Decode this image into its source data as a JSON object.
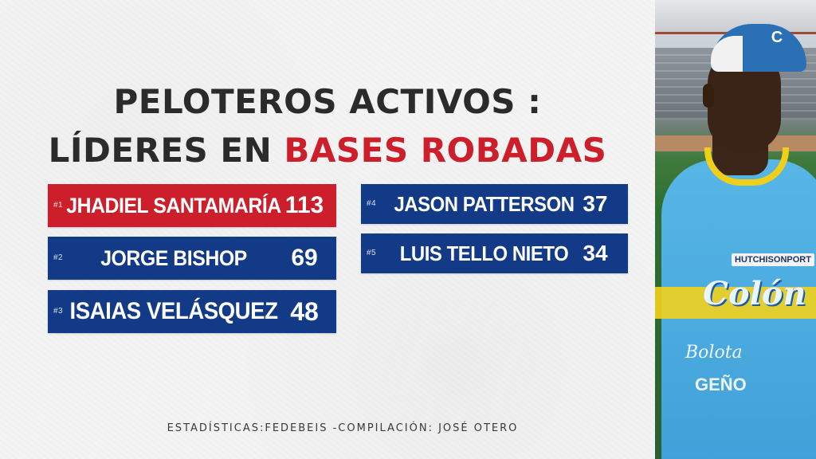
{
  "title": {
    "line1": "PELOTEROS ACTIVOS :",
    "line2_prefix": "LÍDERES EN",
    "line2_highlight": "BASES ROBADAS"
  },
  "leaders": [
    {
      "rank": "#1",
      "name": "JHADIEL SANTAMARÍA",
      "value": "113"
    },
    {
      "rank": "#2",
      "name": "JORGE BISHOP",
      "value": "69"
    },
    {
      "rank": "#3",
      "name": "ISAIAS VELÁSQUEZ",
      "value": "48"
    },
    {
      "rank": "#4",
      "name": "JASON PATTERSON",
      "value": "37"
    },
    {
      "rank": "#5",
      "name": "LUIS TELLO NIETO",
      "value": "34"
    }
  ],
  "footer": "ESTADÍSTICAS:FEDEBEIS -COMPILACIÓN: JOSÉ OTERO",
  "photo": {
    "cap_logo": "C",
    "shirt_brand": "HUTCHISONPORT",
    "shirt_logo": "Colón",
    "shirt_sponsor1": "Bolota",
    "shirt_sponsor2": "GEÑO"
  },
  "colors": {
    "title_dark": "#2b2b2b",
    "highlight_red": "#cc1f2b",
    "row_blue": "#123a86",
    "row_red": "#cc1f2b"
  }
}
